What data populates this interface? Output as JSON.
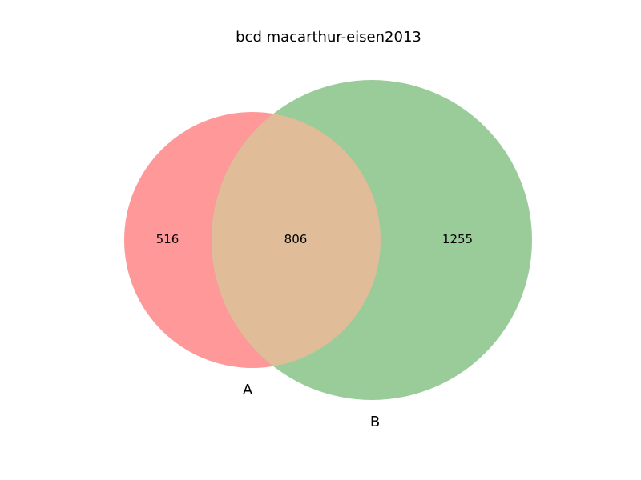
{
  "title": "bcd macarthur-eisen2013",
  "sets": {
    "a": {
      "label": "A",
      "only_count": "516",
      "color": "#ff9999"
    },
    "b": {
      "label": "B",
      "only_count": "1255",
      "color": "#99cc99"
    }
  },
  "intersection": {
    "count": "806",
    "color": "#e0bc99"
  }
}
